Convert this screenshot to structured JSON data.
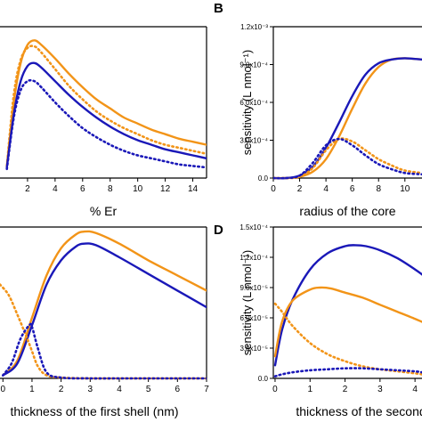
{
  "colors": {
    "orange": "#f29418",
    "blue": "#1a18b8",
    "axis": "#000000"
  },
  "chart_data": [
    {
      "panel": "A",
      "letter": "",
      "type": "line",
      "xlabel": "% Er",
      "ylabel": "",
      "xlim": [
        0,
        15
      ],
      "ylim": [
        0,
        1
      ],
      "xticks": [
        "2",
        "4",
        "6",
        "8",
        "10",
        "12",
        "14"
      ],
      "yticks": [],
      "series": [
        {
          "color": "orange",
          "style": "solid",
          "x": [
            0.5,
            1,
            1.5,
            2,
            2.5,
            3,
            4,
            5,
            6,
            7,
            8,
            9,
            10,
            11,
            12,
            13,
            14,
            15
          ],
          "y": [
            0.08,
            0.5,
            0.76,
            0.88,
            0.91,
            0.88,
            0.79,
            0.69,
            0.6,
            0.52,
            0.46,
            0.4,
            0.36,
            0.32,
            0.29,
            0.26,
            0.24,
            0.22
          ]
        },
        {
          "color": "orange",
          "style": "dotted",
          "x": [
            0.5,
            1,
            1.5,
            2,
            2.5,
            3,
            4,
            5,
            6,
            7,
            8,
            9,
            10,
            11,
            12,
            13,
            14,
            15
          ],
          "y": [
            0.08,
            0.55,
            0.78,
            0.86,
            0.87,
            0.83,
            0.72,
            0.61,
            0.52,
            0.44,
            0.38,
            0.33,
            0.29,
            0.25,
            0.22,
            0.2,
            0.18,
            0.16
          ]
        },
        {
          "color": "blue",
          "style": "solid",
          "x": [
            0.5,
            1,
            1.5,
            2,
            2.5,
            3,
            4,
            5,
            6,
            7,
            8,
            9,
            10,
            11,
            12,
            13,
            14,
            15
          ],
          "y": [
            0.07,
            0.42,
            0.64,
            0.74,
            0.76,
            0.73,
            0.64,
            0.55,
            0.47,
            0.4,
            0.34,
            0.29,
            0.25,
            0.22,
            0.19,
            0.17,
            0.15,
            0.13
          ]
        },
        {
          "color": "blue",
          "style": "dotted",
          "x": [
            0.5,
            1,
            1.5,
            2,
            2.5,
            3,
            4,
            5,
            6,
            7,
            8,
            9,
            10,
            11,
            12,
            13,
            14,
            15
          ],
          "y": [
            0.06,
            0.4,
            0.58,
            0.64,
            0.64,
            0.6,
            0.5,
            0.41,
            0.33,
            0.27,
            0.22,
            0.18,
            0.15,
            0.13,
            0.11,
            0.09,
            0.08,
            0.07
          ]
        }
      ]
    },
    {
      "panel": "B",
      "letter": "B",
      "type": "line",
      "xlabel": "radius of the core",
      "ylabel": "sensitivity (L nmol⁻¹)",
      "xlim": [
        0,
        11.3
      ],
      "ylim": [
        0,
        0.0012
      ],
      "xticks": [
        "0",
        "2",
        "4",
        "6",
        "8",
        "10"
      ],
      "yticks": [
        "0.0",
        "3.0x10⁻⁴",
        "6.0x10⁻⁴",
        "9.0x10⁻⁴",
        "1.2x10⁻³"
      ],
      "series": [
        {
          "color": "orange",
          "style": "solid",
          "x": [
            0,
            1,
            2,
            3,
            4,
            5,
            6,
            7,
            8,
            9,
            10,
            11.3
          ],
          "y": [
            0,
            0,
            1e-05,
            5e-05,
            0.00015,
            0.00033,
            0.00055,
            0.00075,
            0.00088,
            0.00094,
            0.00095,
            0.00094
          ]
        },
        {
          "color": "blue",
          "style": "solid",
          "x": [
            0,
            1,
            2,
            3,
            4,
            5,
            6,
            7,
            8,
            9,
            10,
            11.3
          ],
          "y": [
            0,
            0,
            2e-05,
            9e-05,
            0.00024,
            0.00044,
            0.00065,
            0.00082,
            0.00091,
            0.00094,
            0.00095,
            0.00094
          ]
        },
        {
          "color": "orange",
          "style": "dotted",
          "x": [
            0,
            1,
            2,
            3,
            4,
            5,
            6,
            7,
            8,
            9,
            10,
            11.3
          ],
          "y": [
            0,
            0,
            1e-05,
            8e-05,
            0.00022,
            0.00031,
            0.00029,
            0.00022,
            0.00015,
            0.0001,
            6e-05,
            4e-05
          ]
        },
        {
          "color": "blue",
          "style": "dotted",
          "x": [
            0,
            1,
            2,
            3,
            4,
            5,
            6,
            7,
            8,
            9,
            10,
            11.3
          ],
          "y": [
            0,
            0,
            2e-05,
            0.00012,
            0.00026,
            0.00031,
            0.00026,
            0.00018,
            0.00011,
            7e-05,
            4e-05,
            3e-05
          ]
        }
      ]
    },
    {
      "panel": "C",
      "letter": "",
      "type": "line",
      "xlabel": "thickness of the first shell (nm)",
      "ylabel": "",
      "xlim": [
        -0.1,
        7
      ],
      "ylim": [
        0,
        1
      ],
      "xticks": [
        "0",
        "1",
        "2",
        "3",
        "4",
        "5",
        "6",
        "7"
      ],
      "yticks": [],
      "series": [
        {
          "color": "orange",
          "style": "solid",
          "x": [
            0,
            0.5,
            1,
            1.5,
            2,
            2.5,
            2.8,
            3.2,
            4,
            5,
            6,
            7
          ],
          "y": [
            0.02,
            0.12,
            0.4,
            0.68,
            0.86,
            0.95,
            0.97,
            0.96,
            0.89,
            0.78,
            0.68,
            0.58
          ]
        },
        {
          "color": "blue",
          "style": "solid",
          "x": [
            0,
            0.5,
            1,
            1.5,
            2,
            2.5,
            2.8,
            3.2,
            4,
            5,
            6,
            7
          ],
          "y": [
            0.02,
            0.1,
            0.35,
            0.62,
            0.78,
            0.87,
            0.89,
            0.88,
            0.8,
            0.69,
            0.58,
            0.47
          ]
        },
        {
          "color": "orange",
          "style": "dotted",
          "x": [
            -0.1,
            0.2,
            0.5,
            0.8,
            1,
            1.2,
            1.5,
            2,
            3,
            4,
            5,
            6,
            7
          ],
          "y": [
            0.62,
            0.55,
            0.42,
            0.28,
            0.18,
            0.08,
            0.02,
            0.005,
            0,
            0,
            0,
            0,
            0
          ]
        },
        {
          "color": "blue",
          "style": "dotted",
          "x": [
            0,
            0.3,
            0.6,
            0.9,
            1,
            1.2,
            1.5,
            2,
            3,
            4,
            5,
            6,
            7
          ],
          "y": [
            0.02,
            0.1,
            0.26,
            0.35,
            0.34,
            0.2,
            0.04,
            0.005,
            0,
            0,
            0,
            0,
            0
          ]
        }
      ]
    },
    {
      "panel": "D",
      "letter": "D",
      "type": "line",
      "xlabel": "thickness of the second",
      "ylabel": "sensitivity (L nmol⁻¹)",
      "xlim": [
        -0.05,
        4.2
      ],
      "ylim": [
        0,
        0.00015
      ],
      "xticks": [
        "0",
        "1",
        "2",
        "3",
        "4"
      ],
      "yticks": [
        "0.0",
        "3.0x10⁻⁵",
        "6.0x10⁻⁵",
        "9.0x10⁻⁵",
        "1.2x10⁻⁴",
        "1.5x10⁻⁴"
      ],
      "series": [
        {
          "color": "blue",
          "style": "solid",
          "x": [
            0,
            0.2,
            0.5,
            1,
            1.5,
            2,
            2.3,
            2.6,
            3,
            3.5,
            4,
            4.2
          ],
          "y": [
            1.3e-05,
            4.8e-05,
            7.8e-05,
            0.000108,
            0.000124,
            0.000131,
            0.000132,
            0.000131,
            0.000127,
            0.000119,
            0.000108,
            0.000103
          ]
        },
        {
          "color": "orange",
          "style": "solid",
          "x": [
            0,
            0.2,
            0.5,
            1,
            1.3,
            1.6,
            2,
            2.5,
            3,
            3.5,
            4,
            4.2
          ],
          "y": [
            2.2e-05,
            5.6e-05,
            7.7e-05,
            8.8e-05,
            9e-05,
            8.9e-05,
            8.5e-05,
            8e-05,
            7.3e-05,
            6.6e-05,
            5.9e-05,
            5.6e-05
          ]
        },
        {
          "color": "orange",
          "style": "dotted",
          "x": [
            0,
            0.2,
            0.5,
            1,
            1.5,
            2,
            2.5,
            3,
            3.5,
            4,
            4.2
          ],
          "y": [
            7.4e-05,
            6.6e-05,
            5.2e-05,
            3.5e-05,
            2.4e-05,
            1.7e-05,
            1.2e-05,
            9e-06,
            7e-06,
            5e-06,
            4e-06
          ]
        },
        {
          "color": "blue",
          "style": "dotted",
          "x": [
            0,
            0.2,
            0.5,
            1,
            1.5,
            2,
            2.5,
            3,
            3.5,
            4,
            4.2
          ],
          "y": [
            2e-06,
            4e-06,
            6e-06,
            8e-06,
            9e-06,
            1e-05,
            1e-05,
            9e-06,
            8e-06,
            7e-06,
            6e-06
          ]
        }
      ]
    }
  ]
}
